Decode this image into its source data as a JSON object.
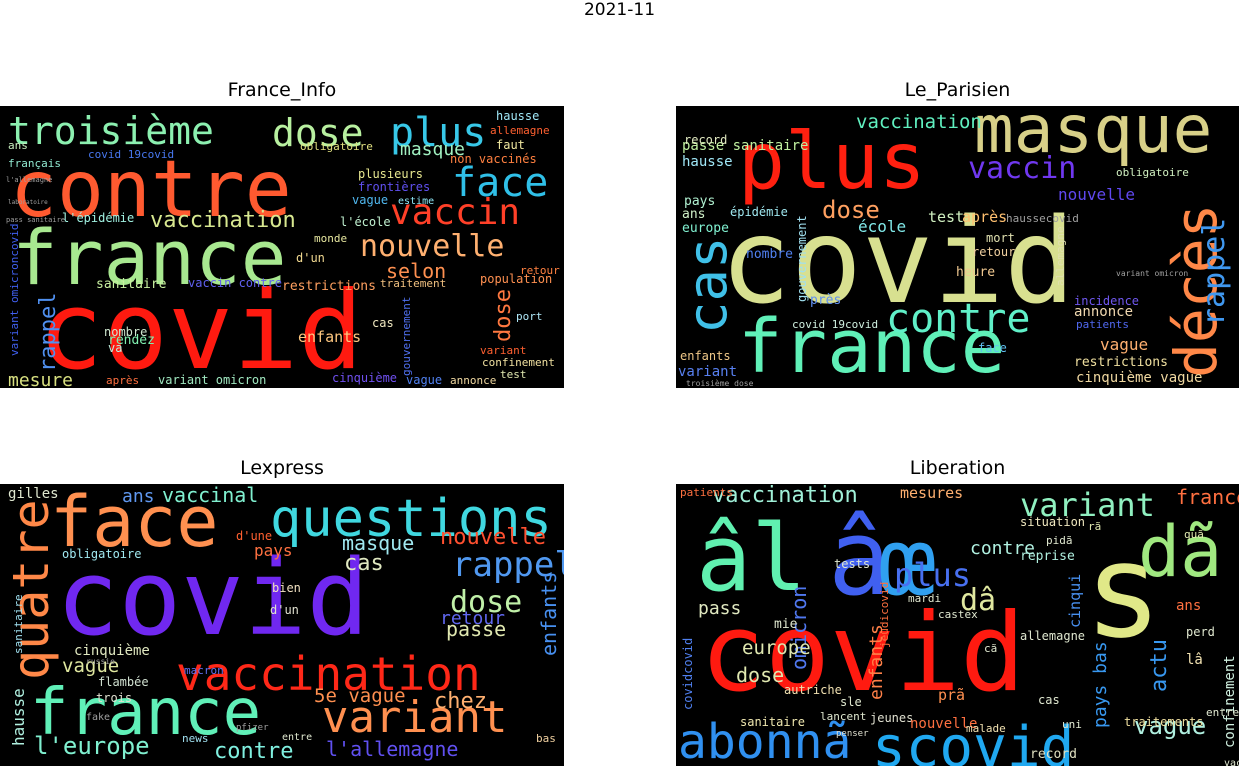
{
  "figure_title": "2021-11",
  "panels": [
    {
      "title": "France_Info",
      "words": [
        {
          "t": "covid",
          "c": "#ff1a10"
        },
        {
          "t": "contre",
          "c": "#ff5a30"
        },
        {
          "t": "france",
          "c": "#a8e890"
        },
        {
          "t": "troisième",
          "c": "#8cf0b0"
        },
        {
          "t": "dose",
          "c": "#b8f0a0"
        },
        {
          "t": "plus",
          "c": "#38c8e8"
        },
        {
          "t": "face",
          "c": "#30c0e8"
        },
        {
          "t": "vaccin",
          "c": "#ff4028"
        },
        {
          "t": "nouvelle",
          "c": "#ffb070"
        },
        {
          "t": "vaccination",
          "c": "#d8e890"
        },
        {
          "t": "masque",
          "c": "#a0f0c0"
        },
        {
          "t": "selon",
          "c": "#ff9050"
        },
        {
          "t": "rappel",
          "c": "#5090f0"
        },
        {
          "t": "mesure",
          "c": "#d8e080"
        },
        {
          "t": "enfants",
          "c": "#ffc880"
        },
        {
          "t": "dose",
          "c": "#ff7840"
        },
        {
          "t": "restrictions",
          "c": "#ffa060"
        },
        {
          "t": "sanitaire",
          "c": "#c8f0a0"
        },
        {
          "t": "hausse",
          "c": "#a0e8f8"
        },
        {
          "t": "allemagne",
          "c": "#ff6030"
        },
        {
          "t": "obligatoire",
          "c": "#e0e080"
        },
        {
          "t": "ans",
          "c": "#c8f0c0"
        },
        {
          "t": "covid 19covid",
          "c": "#4878f0"
        },
        {
          "t": "français",
          "c": "#90e8d0"
        },
        {
          "t": "non vaccinés",
          "c": "#ff8040"
        },
        {
          "t": "faut",
          "c": "#f0e8a0"
        },
        {
          "t": "plusieurs",
          "c": "#e8e890"
        },
        {
          "t": "frontières",
          "c": "#6050f0"
        },
        {
          "t": "vague",
          "c": "#50b8f0"
        },
        {
          "t": "estime",
          "c": "#90e8f8"
        },
        {
          "t": "l'épidémie",
          "c": "#a0f0e0"
        },
        {
          "t": "l'école",
          "c": "#c0f0d0"
        },
        {
          "t": "monde",
          "c": "#e8e8a0"
        },
        {
          "t": "d'un",
          "c": "#f0d890"
        },
        {
          "t": "population",
          "c": "#ff9050"
        },
        {
          "t": "retour",
          "c": "#ff8040"
        },
        {
          "t": "port",
          "c": "#b0e8f8"
        },
        {
          "t": "traitement",
          "c": "#f0c080"
        },
        {
          "t": "cas",
          "c": "#f0e8c0"
        },
        {
          "t": "vaccin contre",
          "c": "#6060f0"
        },
        {
          "t": "rendez",
          "c": "#80f0b0"
        },
        {
          "t": "va",
          "c": "#c0f0e0"
        },
        {
          "t": "nombre",
          "c": "#d0e8d0"
        },
        {
          "t": "variant omicron",
          "c": "#a0e8c0"
        },
        {
          "t": "cinquième",
          "c": "#7050f0"
        },
        {
          "t": "vague",
          "c": "#5080f0"
        },
        {
          "t": "annonce",
          "c": "#f0d8a0"
        },
        {
          "t": "test",
          "c": "#e0e8b0"
        },
        {
          "t": "confinement",
          "c": "#f0e0a0"
        },
        {
          "t": "variant",
          "c": "#ff6030"
        },
        {
          "t": "après",
          "c": "#ff7040"
        },
        {
          "t": "gouvernement",
          "c": "#5070f0"
        },
        {
          "t": "variant omicroncovid",
          "c": "#4060f0"
        },
        {
          "t": "laboratoire",
          "c": "#a0a0a0"
        },
        {
          "t": "pass sanitaire",
          "c": "#a0a0a0"
        },
        {
          "t": "l'allemagne",
          "c": "#a0a0a0"
        }
      ]
    },
    {
      "title": "Le_Parisien",
      "words": [
        {
          "t": "covid",
          "c": "#d8e090"
        },
        {
          "t": "masque",
          "c": "#d8d088"
        },
        {
          "t": "plus",
          "c": "#ff2010"
        },
        {
          "t": "france",
          "c": "#60f0b8"
        },
        {
          "t": "cas",
          "c": "#40c0e8"
        },
        {
          "t": "décès",
          "c": "#ff8848"
        },
        {
          "t": "contre",
          "c": "#60f0c8"
        },
        {
          "t": "vaccin",
          "c": "#7038f0"
        },
        {
          "t": "rappel",
          "c": "#4098f0"
        },
        {
          "t": "dose",
          "c": "#ffa060"
        },
        {
          "t": "vaccination",
          "c": "#60f0c0"
        },
        {
          "t": "passe sanitaire",
          "c": "#c0f0a0"
        },
        {
          "t": "nouvelle",
          "c": "#6048f0"
        },
        {
          "t": "école",
          "c": "#80e8e8"
        },
        {
          "t": "test",
          "c": "#d0f0c0"
        },
        {
          "t": "après",
          "c": "#ffc070"
        },
        {
          "t": "hausse",
          "c": "#a0e8f8"
        },
        {
          "t": "pays",
          "c": "#b0f0d0"
        },
        {
          "t": "europe",
          "c": "#80f0d0"
        },
        {
          "t": "ans",
          "c": "#d0f0c8"
        },
        {
          "t": "épidémie",
          "c": "#a0e8f0"
        },
        {
          "t": "nombre",
          "c": "#5080f0"
        },
        {
          "t": "record",
          "c": "#e0e8c0"
        },
        {
          "t": "enfants",
          "c": "#f0c888"
        },
        {
          "t": "variant",
          "c": "#5880f0"
        },
        {
          "t": "vague",
          "c": "#ffb070"
        },
        {
          "t": "annonce",
          "c": "#f0d8b0"
        },
        {
          "t": "restrictions",
          "c": "#f0e0a0"
        },
        {
          "t": "cinquième vague",
          "c": "#f0d8a0"
        },
        {
          "t": "incidence",
          "c": "#7058f0"
        },
        {
          "t": "patients",
          "c": "#5068f0"
        },
        {
          "t": "mort",
          "c": "#e0e0b0"
        },
        {
          "t": "retour",
          "c": "#f0d0a0"
        },
        {
          "t": "heure",
          "c": "#f0c890"
        },
        {
          "t": "covid 19covid",
          "c": "#d0f0e0"
        },
        {
          "t": "gouvernement",
          "c": "#a0e0f0"
        },
        {
          "t": "obligatoire",
          "c": "#d0f0c0"
        },
        {
          "t": "allemagne",
          "c": "#e0e0b0"
        },
        {
          "t": "face",
          "c": "#60c0f0"
        },
        {
          "t": "près",
          "c": "#6090f0"
        },
        {
          "t": "variant omicron",
          "c": "#a0a0a0"
        },
        {
          "t": "haussecovid",
          "c": "#a0a0a0"
        },
        {
          "t": "troisième dose",
          "c": "#a0a0a0"
        }
      ]
    },
    {
      "title": "Lexpress",
      "words": [
        {
          "t": "covid",
          "c": "#7028f0"
        },
        {
          "t": "face",
          "c": "#ff9050"
        },
        {
          "t": "questions",
          "c": "#40d8e0"
        },
        {
          "t": "quatre",
          "c": "#ff8848"
        },
        {
          "t": "vaccination",
          "c": "#ff2818"
        },
        {
          "t": "france",
          "c": "#60f0b8"
        },
        {
          "t": "variant",
          "c": "#ff9050"
        },
        {
          "t": "rappel",
          "c": "#5098f0"
        },
        {
          "t": "dose",
          "c": "#c0f0a8"
        },
        {
          "t": "nouvelle",
          "c": "#ff5030"
        },
        {
          "t": "masque",
          "c": "#a0e8f0"
        },
        {
          "t": "vaccinal",
          "c": "#80f0d0"
        },
        {
          "t": "ans",
          "c": "#6098f0"
        },
        {
          "t": "cas",
          "c": "#e0e8c0"
        },
        {
          "t": "retour",
          "c": "#6068f0"
        },
        {
          "t": "passe",
          "c": "#e0e8b0"
        },
        {
          "t": "enfants",
          "c": "#4890f0"
        },
        {
          "t": "l'europe",
          "c": "#80f0d0"
        },
        {
          "t": "contre",
          "c": "#80f0e0"
        },
        {
          "t": "l'allemagne",
          "c": "#6050f0"
        },
        {
          "t": "5e vague",
          "c": "#ff9050"
        },
        {
          "t": "chez",
          "c": "#ffb070"
        },
        {
          "t": "hausse",
          "c": "#b0f0e0"
        },
        {
          "t": "vague",
          "c": "#e0e8a0"
        },
        {
          "t": "pays",
          "c": "#ff7040"
        },
        {
          "t": "cinquième",
          "c": "#e0e8c0"
        },
        {
          "t": "gilles",
          "c": "#e0e8d0"
        },
        {
          "t": "obligatoire",
          "c": "#a0e8f0"
        },
        {
          "t": "d'une",
          "c": "#ff6030"
        },
        {
          "t": "sanitaire",
          "c": "#a0e0f0"
        },
        {
          "t": "flambée",
          "c": "#d0e0d0"
        },
        {
          "t": "trois",
          "c": "#e0e0d0"
        },
        {
          "t": "macron",
          "c": "#6070f0"
        },
        {
          "t": "d'un",
          "c": "#e0e0d0"
        },
        {
          "t": "bien",
          "c": "#f0e0c0"
        },
        {
          "t": "news",
          "c": "#a0e0f0"
        },
        {
          "t": "entre",
          "c": "#e0e8d0"
        },
        {
          "t": "bas",
          "c": "#f0d0a0"
        },
        {
          "t": "pfizer",
          "c": "#a0a0a0"
        },
        {
          "t": "fake",
          "c": "#a0a0a0"
        },
        {
          "t": "russie",
          "c": "#a0a0a0"
        }
      ]
    },
    {
      "title": "Liberation",
      "words": [
        {
          "t": "covid",
          "c": "#ff1a10"
        },
        {
          "t": "âl",
          "c": "#60f0b0"
        },
        {
          "t": "â",
          "c": "#4060f0"
        },
        {
          "t": "œ",
          "c": "#30a0f0"
        },
        {
          "t": "s",
          "c": "#e0e888"
        },
        {
          "t": "dã",
          "c": "#a0e880"
        },
        {
          "t": "abonnã",
          "c": "#3090f0"
        },
        {
          "t": "scovid",
          "c": "#20a8f0"
        },
        {
          "t": "variant",
          "c": "#90f0c0"
        },
        {
          "t": "vaccination",
          "c": "#a0f0d8"
        },
        {
          "t": "plus",
          "c": "#4870f0"
        },
        {
          "t": "dâ",
          "c": "#e0e8a0"
        },
        {
          "t": "france",
          "c": "#ff7040"
        },
        {
          "t": "mesures",
          "c": "#ffb070"
        },
        {
          "t": "contre",
          "c": "#b0f0e0"
        },
        {
          "t": "vague",
          "c": "#b0f0e0"
        },
        {
          "t": "actu",
          "c": "#3898f0"
        },
        {
          "t": "pays bas",
          "c": "#3898f0"
        },
        {
          "t": "confinement",
          "c": "#d0f0e0"
        },
        {
          "t": "omicron",
          "c": "#5078f0"
        },
        {
          "t": "europe",
          "c": "#e0e8b0"
        },
        {
          "t": "dose",
          "c": "#e0e8b0"
        },
        {
          "t": "pass",
          "c": "#e0e8c0"
        },
        {
          "t": "enfants",
          "c": "#ff8048"
        },
        {
          "t": "jeunes",
          "c": "#e0e0d0"
        },
        {
          "t": "nouvelle",
          "c": "#ff7040"
        },
        {
          "t": "sanitaire",
          "c": "#f0e8b0"
        },
        {
          "t": "tests",
          "c": "#e0e8d0"
        },
        {
          "t": "situation",
          "c": "#f0e8c0"
        },
        {
          "t": "reprise",
          "c": "#b0f0e0"
        },
        {
          "t": "allemagne",
          "c": "#e0e8d0"
        },
        {
          "t": "traitements",
          "c": "#f0e0a0"
        },
        {
          "t": "record",
          "c": "#e0e0c0"
        },
        {
          "t": "patients",
          "c": "#ff7040"
        },
        {
          "t": "covidcovid",
          "c": "#5080f0"
        },
        {
          "t": "cinqui",
          "c": "#4890f0"
        },
        {
          "t": "mie",
          "c": "#e0e8d0"
        },
        {
          "t": "prã",
          "c": "#ff9050"
        },
        {
          "t": "ans",
          "c": "#ff7040"
        },
        {
          "t": "lâ",
          "c": "#f0e0b0"
        },
        {
          "t": "perd",
          "c": "#e0e8d0"
        },
        {
          "t": "mardi",
          "c": "#e0e8d0"
        },
        {
          "t": "castex",
          "c": "#e0e8d0"
        },
        {
          "t": "malade",
          "c": "#f0e0b0"
        },
        {
          "t": "uni",
          "c": "#e0e8d0"
        },
        {
          "t": "cas",
          "c": "#e0e8d0"
        },
        {
          "t": "sle",
          "c": "#e0e8d0"
        },
        {
          "t": "lancent",
          "c": "#e0e8d0"
        },
        {
          "t": "autriche",
          "c": "#f0e0b0"
        },
        {
          "t": "pidã",
          "c": "#e0e8d0"
        },
        {
          "t": "rã",
          "c": "#e0e8b0"
        },
        {
          "t": "quã",
          "c": "#e0e8b0"
        },
        {
          "t": "entre",
          "c": "#e0e8d0"
        },
        {
          "t": "jeudicovid",
          "c": "#ff7040"
        },
        {
          "t": "penser",
          "c": "#e0e0d0"
        },
        {
          "t": "cã",
          "c": "#e0e8d0"
        },
        {
          "t": "vaccinã",
          "c": "#e0e8d0"
        }
      ]
    }
  ]
}
